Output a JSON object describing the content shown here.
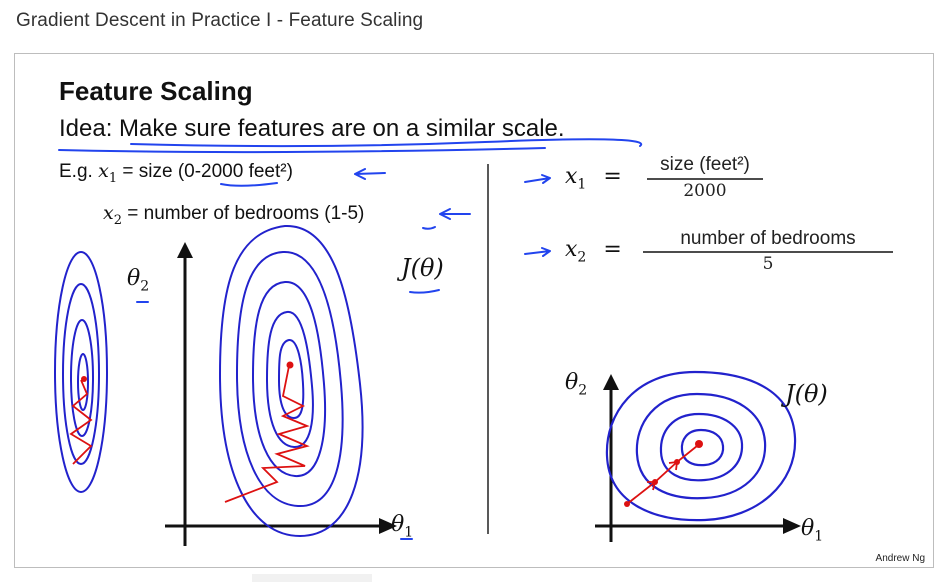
{
  "page": {
    "title": "Gradient Descent in Practice I - Feature Scaling"
  },
  "slide": {
    "heading": "Feature Scaling",
    "idea": "Idea: Make sure features are on a similar scale.",
    "example": {
      "eg_prefix": "E.g.",
      "x1_var": "x",
      "x1_sub": "1",
      "x1_text": "= size (0-2000 feet²)",
      "x2_var": "x",
      "x2_sub": "2",
      "x2_text": "= number of bedrooms (1-5)"
    },
    "left_plot": {
      "theta2_label": "θ",
      "theta2_sub": "2",
      "cost_label": "J(θ)",
      "theta1_label": "θ",
      "theta1_sub": "1"
    },
    "scaled": {
      "x1_lhs_var": "x",
      "x1_lhs_sub": "1",
      "x1_num": "size (feet²)",
      "x1_den": "2000",
      "x2_lhs_var": "x",
      "x2_lhs_sub": "2",
      "x2_num": "number of bedrooms",
      "x2_den": "5",
      "equals": "="
    },
    "right_plot": {
      "theta2_label": "θ",
      "theta2_sub": "2",
      "cost_label": "J(θ)",
      "theta1_label": "θ",
      "theta1_sub": "1"
    },
    "author": "Andrew Ng"
  },
  "colors": {
    "ink": "#111111",
    "contour": "#2222cc",
    "annotation": "#2244ee",
    "descent_path": "#dd1111"
  }
}
